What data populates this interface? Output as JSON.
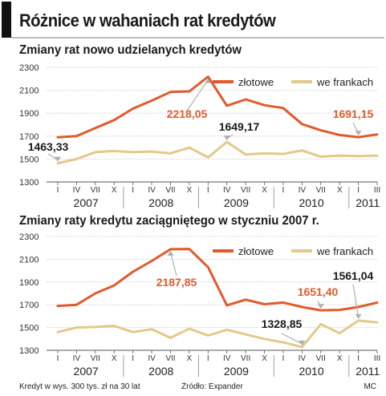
{
  "title": "Różnice w wahaniach rat kredytów",
  "footer": {
    "note": "Kredyt w wys. 300 tys. zł na 30 lat",
    "source": "Źródło: Expander",
    "credit": "MC"
  },
  "colors": {
    "zlotowe": "#e25a2c",
    "frankach": "#e3c98a",
    "annotation_red": "#e25a2c",
    "annotation_dark": "#1a1a1a"
  },
  "chart_data": [
    {
      "type": "line",
      "title": "Zmiany rat nowo udzielanych kredytów",
      "ylim": [
        1300,
        2300
      ],
      "yticks": [
        1300,
        1500,
        1700,
        1900,
        2100,
        2300
      ],
      "x_ticks": [
        "I",
        "IV",
        "VII",
        "X",
        "I",
        "IV",
        "VII",
        "X",
        "I",
        "IV",
        "VII",
        "X",
        "I",
        "IV",
        "VII",
        "X",
        "I",
        "III"
      ],
      "years": [
        "2007",
        "2008",
        "2009",
        "2010",
        "2011"
      ],
      "legend": [
        "złotowe",
        "we frankach"
      ],
      "legend_position": "top-right",
      "series": [
        {
          "name": "złotowe",
          "values": [
            1690,
            1700,
            1770,
            1840,
            1940,
            2010,
            2085,
            2090,
            2218.05,
            1965,
            2020,
            1970,
            1945,
            1805,
            1750,
            1710,
            1691.15,
            1715
          ]
        },
        {
          "name": "we frankach",
          "values": [
            1463.33,
            1500,
            1560,
            1570,
            1560,
            1565,
            1550,
            1600,
            1515,
            1649.17,
            1540,
            1550,
            1545,
            1575,
            1520,
            1530,
            1525,
            1530
          ]
        }
      ],
      "annotations": [
        {
          "text": "2218,05",
          "series": "złotowe",
          "index": 8
        },
        {
          "text": "1649,17",
          "series": "we frankach",
          "index": 9
        },
        {
          "text": "1463,33",
          "series": "we frankach",
          "index": 0
        },
        {
          "text": "1691,15",
          "series": "złotowe",
          "index": 16
        }
      ]
    },
    {
      "type": "line",
      "title": "Zmiany raty kredytu zaciągniętego w styczniu 2007 r.",
      "ylim": [
        1300,
        2300
      ],
      "yticks": [
        1300,
        1500,
        1700,
        1900,
        2100,
        2300
      ],
      "x_ticks": [
        "I",
        "IV",
        "VII",
        "X",
        "I",
        "IV",
        "VII",
        "X",
        "I",
        "IV",
        "VII",
        "X",
        "I",
        "IV",
        "VII",
        "X",
        "I",
        "III"
      ],
      "years": [
        "2007",
        "2008",
        "2009",
        "2010",
        "2011"
      ],
      "legend": [
        "złotowe",
        "we frankach"
      ],
      "legend_position": "top-right",
      "series": [
        {
          "name": "złotowe",
          "values": [
            1690,
            1700,
            1800,
            1870,
            1990,
            2085,
            2187.85,
            2190,
            2030,
            1695,
            1745,
            1705,
            1720,
            1680,
            1651.4,
            1655,
            1680,
            1720
          ]
        },
        {
          "name": "we frankach",
          "values": [
            1460,
            1500,
            1505,
            1515,
            1460,
            1485,
            1410,
            1490,
            1430,
            1480,
            1440,
            1400,
            1370,
            1328.85,
            1530,
            1450,
            1561.04,
            1545
          ]
        }
      ],
      "annotations": [
        {
          "text": "2187,85",
          "series": "złotowe",
          "index": 6
        },
        {
          "text": "1651,40",
          "series": "złotowe",
          "index": 14
        },
        {
          "text": "1328,85",
          "series": "we frankach",
          "index": 13
        },
        {
          "text": "1561,04",
          "series": "we frankach",
          "index": 16
        }
      ]
    }
  ]
}
